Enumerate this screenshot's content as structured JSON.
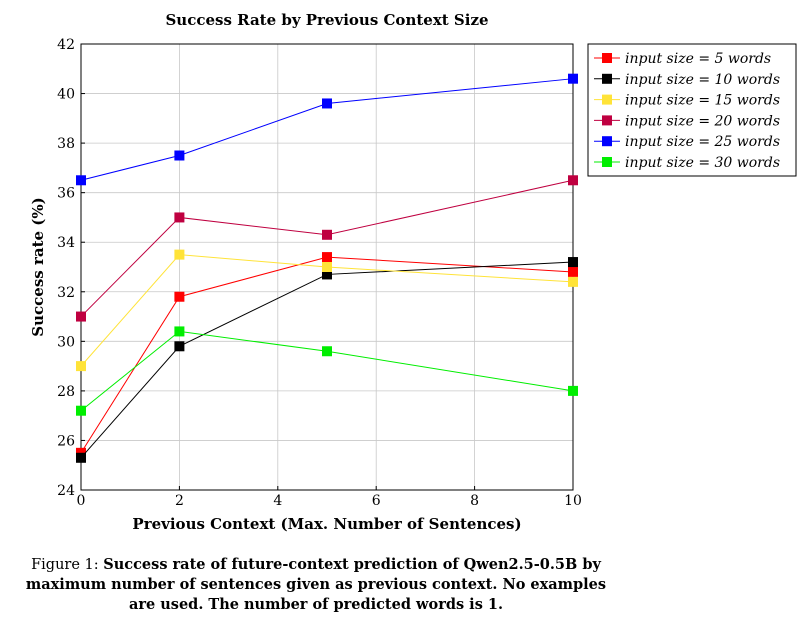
{
  "chart_data": {
    "type": "line",
    "title": "Success Rate by Previous Context Size",
    "xlabel": "Previous Context (Max. Number of Sentences)",
    "ylabel": "Success rate (%)",
    "xlim": [
      0,
      10
    ],
    "ylim": [
      24,
      42
    ],
    "xticks": [
      0,
      2,
      4,
      6,
      8,
      10
    ],
    "yticks": [
      24,
      26,
      28,
      30,
      32,
      34,
      36,
      38,
      40,
      42
    ],
    "grid": true,
    "legend_position": "outside-top-right",
    "x": [
      0,
      2,
      5,
      10
    ],
    "series": [
      {
        "name": "input size = 5 words",
        "color": "#ff0000",
        "values": [
          25.5,
          31.8,
          33.4,
          32.8
        ]
      },
      {
        "name": "input size = 10 words",
        "color": "#000000",
        "values": [
          25.3,
          29.8,
          32.7,
          33.2
        ]
      },
      {
        "name": "input size = 15 words",
        "color": "#ffe338",
        "values": [
          29.0,
          33.5,
          33.0,
          32.4
        ]
      },
      {
        "name": "input size = 20 words",
        "color": "#bf0040",
        "values": [
          31.0,
          35.0,
          34.3,
          36.5
        ]
      },
      {
        "name": "input size = 25 words",
        "color": "#0000ff",
        "values": [
          36.5,
          37.5,
          39.6,
          40.6
        ]
      },
      {
        "name": "input size = 30 words",
        "color": "#00ee00",
        "values": [
          27.2,
          30.4,
          29.6,
          28.0
        ]
      }
    ]
  },
  "caption": {
    "figure_label": "Figure 1:",
    "text": "Success rate of future-context prediction of Qwen2.5-0.5B by maximum number of sentences given as previous context.  No examples are used. The number of predicted words is 1."
  }
}
